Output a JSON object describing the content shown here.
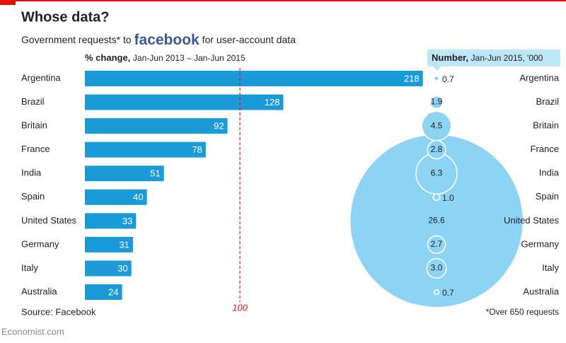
{
  "title": "Whose data?",
  "subtitle": {
    "before": "Government requests* to",
    "brand": "facebook",
    "after": "for user-account data"
  },
  "source": "Source: Facebook",
  "footnote": "*Over 650 requests",
  "publisher": "Economist.com",
  "chart_data": [
    {
      "type": "bar",
      "orientation": "horizontal",
      "axis_title": "% change,",
      "axis_subtitle": "Jan-Jun 2013 – Jan-Jun 2015",
      "categories": [
        "Argentina",
        "Brazil",
        "Britain",
        "France",
        "India",
        "Spain",
        "United States",
        "Germany",
        "Italy",
        "Australia"
      ],
      "values": [
        218,
        128,
        92,
        78,
        51,
        40,
        33,
        31,
        30,
        24
      ],
      "color": "#1a9bd7",
      "xlim": [
        0,
        225
      ],
      "reference_line": 100,
      "reference_color": "#e3120b"
    },
    {
      "type": "bubble",
      "title": "Number,",
      "subtitle": "Jan-Jun 2015, '000",
      "categories": [
        "Argentina",
        "Brazil",
        "Britain",
        "France",
        "India",
        "Spain",
        "United States",
        "Germany",
        "Italy",
        "Australia"
      ],
      "values": [
        0.7,
        1.9,
        4.5,
        2.8,
        6.3,
        1.0,
        26.6,
        2.7,
        3.0,
        0.7
      ],
      "value_labels": [
        "0.7",
        "1.9",
        "4.5",
        "2.8",
        "6.3",
        "1.0",
        "26.6",
        "2.7",
        "3.0",
        "0.7"
      ],
      "color": "#8dd4f4"
    }
  ]
}
